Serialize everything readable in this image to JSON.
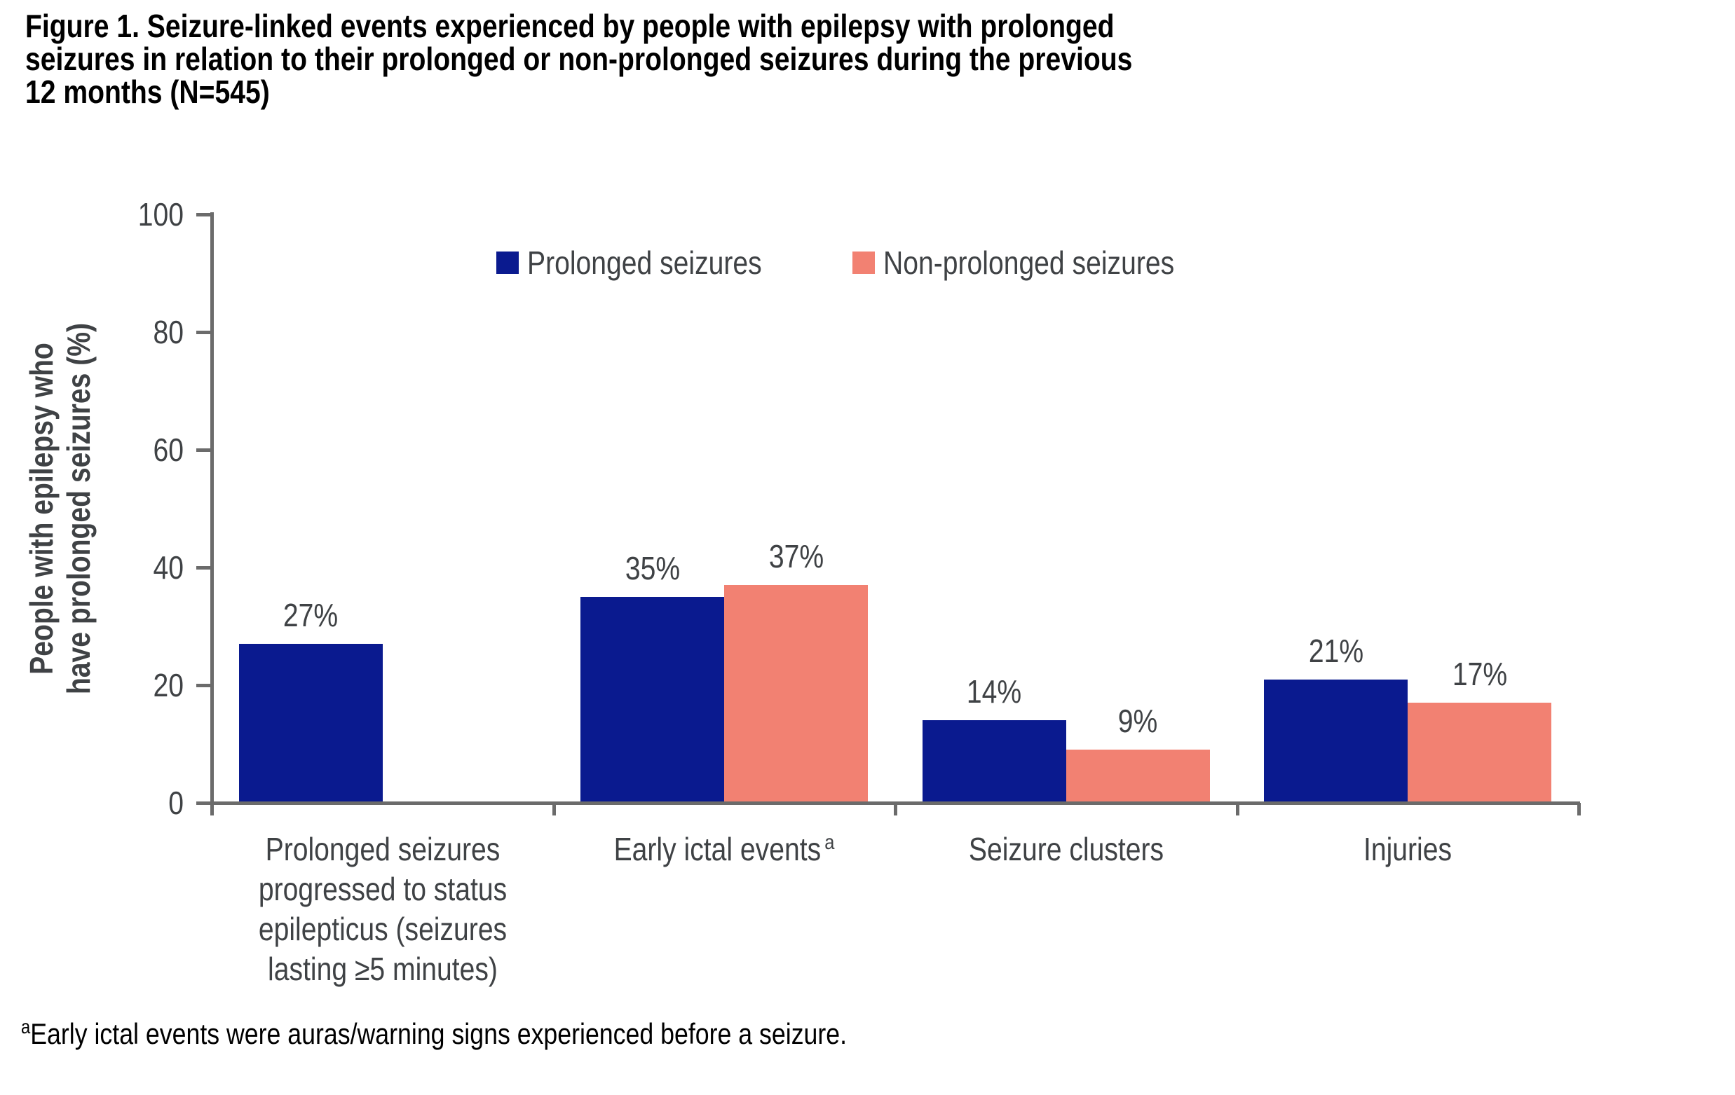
{
  "figure": {
    "title_lines": [
      "Figure 1. Seizure-linked events experienced by people with epilepsy with prolonged",
      "seizures in relation to their prolonged or non-prolonged seizures during the previous",
      "12 months (N=545)"
    ],
    "footnote": {
      "superscript": "a",
      "text": "Early ictal events were auras/warning signs experienced before a seizure."
    }
  },
  "chart_data": {
    "type": "bar",
    "title": "Figure 1. Seizure-linked events experienced by people with epilepsy with prolonged seizures in relation to their prolonged or non-prolonged seizures during the previous 12 months (N=545)",
    "xlabel": "",
    "ylabel": "People with epilepsy who have prolonged seizures (%)",
    "ylabel_lines": [
      "People with epilepsy who",
      "have prolonged seizures (%)"
    ],
    "ylim": [
      0,
      100
    ],
    "yticks": [
      0,
      20,
      40,
      60,
      80,
      100
    ],
    "grid": false,
    "legend_position": "top",
    "value_suffix": "%",
    "categories": [
      {
        "lines": [
          "Prolonged seizures",
          "progressed to status",
          "epilepticus (seizures",
          "lasting ≥5 minutes)"
        ],
        "superscript": null
      },
      {
        "lines": [
          "Early ictal events"
        ],
        "superscript": "a"
      },
      {
        "lines": [
          "Seizure clusters"
        ],
        "superscript": null
      },
      {
        "lines": [
          "Injuries"
        ],
        "superscript": null
      }
    ],
    "series": [
      {
        "name": "Prolonged seizures",
        "color": "#0A1A8F",
        "values": [
          27,
          35,
          14,
          21
        ]
      },
      {
        "name": "Non-prolonged seizures",
        "color": "#F28172",
        "values": [
          null,
          37,
          9,
          17
        ]
      }
    ],
    "colors": {
      "axis": "#6B6B6B",
      "text": "#3F4245",
      "title": "#000000"
    }
  }
}
